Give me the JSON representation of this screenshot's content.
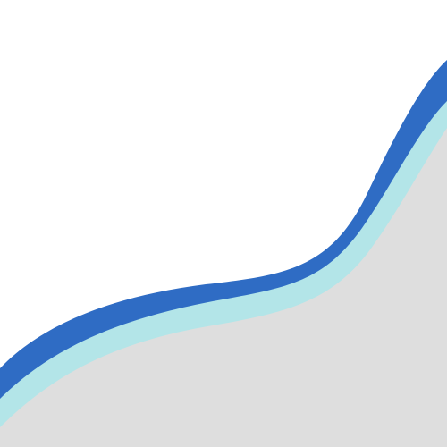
{
  "colors": {
    "background": "#ffffff",
    "fill": "#dedede",
    "inner_band": "#b3e5e8",
    "outer_band": "#2f6cc4"
  }
}
